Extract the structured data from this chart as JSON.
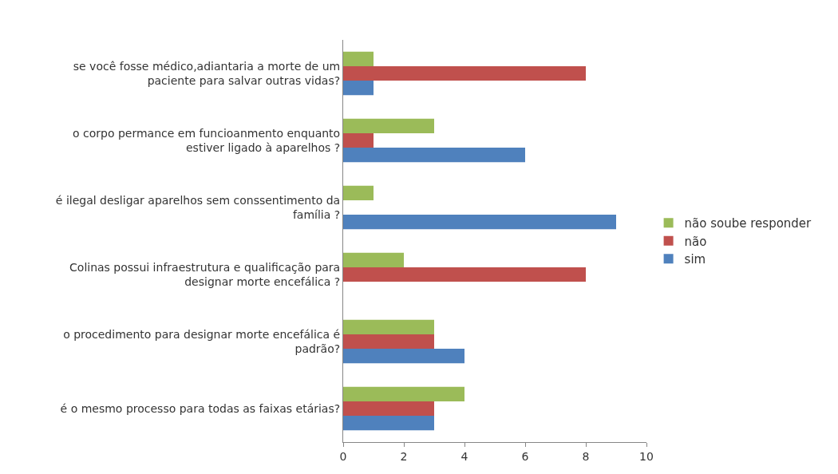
{
  "chart_data": {
    "type": "bar",
    "orientation": "horizontal",
    "categories": [
      "se você fosse médico,adiantaria a morte de um\npaciente para salvar outras vidas?",
      "o corpo permance em funcioanmento enquanto\nestiver ligado à aparelhos ?",
      "é ilegal desligar aparelhos sem conssentimento da\nfamília ?",
      "Colinas possui infraestrutura e qualificação para\ndesignar morte encefálica ?",
      "o procedimento para designar morte encefálica é\npadrão?",
      "é o mesmo processo para todas as faixas etárias?"
    ],
    "series": [
      {
        "name": "não soube responder",
        "color": "#9bbb59",
        "values": [
          1,
          3,
          1,
          2,
          3,
          4
        ]
      },
      {
        "name": "não",
        "color": "#c0504d",
        "values": [
          8,
          1,
          0,
          8,
          3,
          3
        ]
      },
      {
        "name": "sim",
        "color": "#4f81bd",
        "values": [
          1,
          6,
          9,
          0,
          4,
          3
        ]
      }
    ],
    "xlim": [
      0,
      10
    ],
    "xticks": [
      0,
      2,
      4,
      6,
      8,
      10
    ],
    "grid": false,
    "legend": "right"
  }
}
